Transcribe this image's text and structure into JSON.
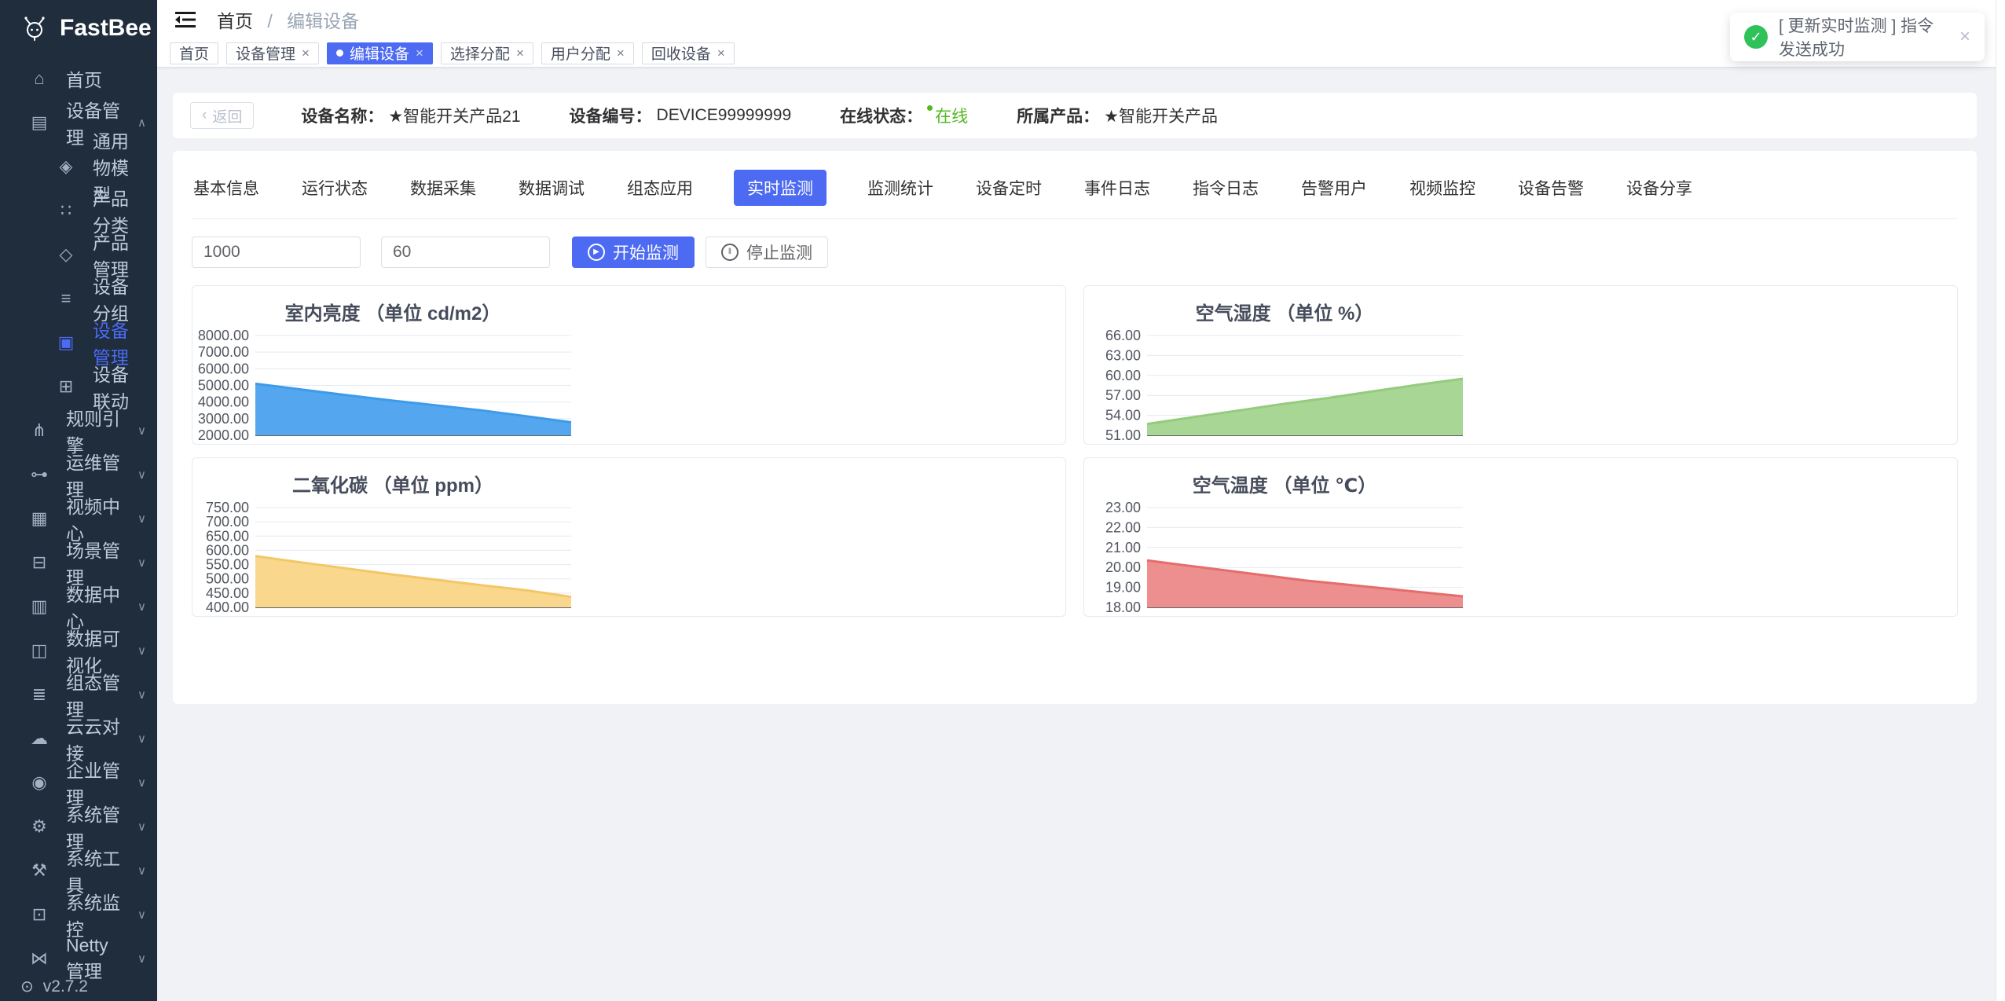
{
  "app": {
    "logo_text": "FastBee",
    "version": "v2.7.2"
  },
  "colors": {
    "accent": "#4c6af2",
    "sidebar_bg": "#1f2d3d",
    "content_bg": "#f0f2f5",
    "online_green": "#52b81f",
    "toast_green": "#2fc25b"
  },
  "icons": {
    "home-icon": "⌂",
    "device-management-icon": "▤",
    "thing-model-icon": "◈",
    "product-category-icon": "∷",
    "product-management-icon": "◇",
    "device-group-icon": "≡",
    "device-list-icon": "▣",
    "device-linkage-icon": "⊞",
    "rule-engine-icon": "⋔",
    "ops-management-icon": "⊶",
    "video-center-icon": "▦",
    "scene-management-icon": "⊟",
    "data-center-icon": "▥",
    "data-visualization-icon": "◫",
    "scada-management-icon": "≣",
    "cloud-integration-icon": "☁",
    "enterprise-management-icon": "◉",
    "system-management-icon": "⚙",
    "system-tools-icon": "⚒",
    "system-monitor-icon": "⊡",
    "netty-management-icon": "⋈",
    "version-icon": "⊙",
    "chevron-down-icon": "∨",
    "chevron-up-icon": "∧",
    "back-icon": "‹",
    "play-icon": "▶",
    "pause-icon": "‖",
    "check-icon": "✓",
    "close-icon": "×"
  },
  "sidebar_menu": [
    {
      "name": "home",
      "icon": "home-icon",
      "label": "首页"
    },
    {
      "name": "device-management",
      "icon": "device-management-icon",
      "label": "设备管理",
      "chevron": "up",
      "children": [
        {
          "name": "thing-model",
          "icon": "thing-model-icon",
          "label": "通用物模型"
        },
        {
          "name": "product-category",
          "icon": "product-category-icon",
          "label": "产品分类"
        },
        {
          "name": "product-management",
          "icon": "product-management-icon",
          "label": "产品管理"
        },
        {
          "name": "device-group",
          "icon": "device-group-icon",
          "label": "设备分组"
        },
        {
          "name": "device-list",
          "icon": "device-list-icon",
          "label": "设备管理",
          "active": true
        },
        {
          "name": "device-linkage",
          "icon": "device-linkage-icon",
          "label": "设备联动"
        }
      ]
    },
    {
      "name": "rule-engine",
      "icon": "rule-engine-icon",
      "label": "规则引擎",
      "chevron": "down"
    },
    {
      "name": "ops-management",
      "icon": "ops-management-icon",
      "label": "运维管理",
      "chevron": "down"
    },
    {
      "name": "video-center",
      "icon": "video-center-icon",
      "label": "视频中心",
      "chevron": "down"
    },
    {
      "name": "scene-management",
      "icon": "scene-management-icon",
      "label": "场景管理",
      "chevron": "down"
    },
    {
      "name": "data-center",
      "icon": "data-center-icon",
      "label": "数据中心",
      "chevron": "down"
    },
    {
      "name": "data-visualization",
      "icon": "data-visualization-icon",
      "label": "数据可视化",
      "chevron": "down"
    },
    {
      "name": "scada-management",
      "icon": "scada-management-icon",
      "label": "组态管理",
      "chevron": "down"
    },
    {
      "name": "cloud-integration",
      "icon": "cloud-integration-icon",
      "label": "云云对接",
      "chevron": "down"
    },
    {
      "name": "enterprise-management",
      "icon": "enterprise-management-icon",
      "label": "企业管理",
      "chevron": "down"
    },
    {
      "name": "system-management",
      "icon": "system-management-icon",
      "label": "系统管理",
      "chevron": "down"
    },
    {
      "name": "system-tools",
      "icon": "system-tools-icon",
      "label": "系统工具",
      "chevron": "down"
    },
    {
      "name": "system-monitor",
      "icon": "system-monitor-icon",
      "label": "系统监控",
      "chevron": "down"
    },
    {
      "name": "netty-management",
      "icon": "netty-management-icon",
      "label": "Netty管理",
      "chevron": "down"
    }
  ],
  "breadcrumb": {
    "items": [
      "首页",
      "编辑设备"
    ]
  },
  "tags_view": [
    {
      "label": "首页",
      "closable": false,
      "active": false
    },
    {
      "label": "设备管理",
      "closable": true,
      "active": false
    },
    {
      "label": "编辑设备",
      "closable": true,
      "active": true
    },
    {
      "label": "选择分配",
      "closable": true,
      "active": false
    },
    {
      "label": "用户分配",
      "closable": true,
      "active": false
    },
    {
      "label": "回收设备",
      "closable": true,
      "active": false
    }
  ],
  "toast": {
    "message": "[ 更新实时监测 ] 指令发送成功"
  },
  "device_info": {
    "back_label": "返回",
    "fields": [
      {
        "name": "device-name",
        "label": "设备名称：",
        "value": "★智能开关产品21"
      },
      {
        "name": "device-number",
        "label": "设备编号：",
        "value": "DEVICE99999999"
      },
      {
        "name": "online-status",
        "label": "在线状态：",
        "value": "在线",
        "status": "online"
      },
      {
        "name": "product",
        "label": "所属产品：",
        "value": "★智能开关产品"
      }
    ]
  },
  "tabs": {
    "items": [
      "基本信息",
      "运行状态",
      "数据采集",
      "数据调试",
      "组态应用",
      "实时监测",
      "监测统计",
      "设备定时",
      "事件日志",
      "指令日志",
      "告警用户",
      "视频监控",
      "设备告警",
      "设备分享"
    ],
    "active": "实时监测"
  },
  "monitor_controls": {
    "interval_value": "1000",
    "count_value": "60",
    "start_label": "开始监测",
    "stop_label": "停止监测"
  },
  "chart_data": [
    {
      "type": "area",
      "name": "indoor-brightness",
      "title": "室内亮度 （单位 cd/m2）",
      "ylabel": "cd/m2",
      "ylim": [
        2000,
        8000
      ],
      "grid": true,
      "legend_position": "none",
      "tick_labels": [
        "8000.00",
        "7000.00",
        "6000.00",
        "5000.00",
        "4000.00",
        "3000.00",
        "2000.00"
      ],
      "values": [
        5100,
        4760,
        4420,
        4100,
        3800,
        3500,
        3150,
        2780
      ],
      "fill": "#54a7ee",
      "stroke": "#3d9bea"
    },
    {
      "type": "area",
      "name": "air-humidity",
      "title": "空气湿度 （单位 %）",
      "ylabel": "%",
      "ylim": [
        51,
        66
      ],
      "grid": true,
      "legend_position": "none",
      "tick_labels": [
        "66.00",
        "63.00",
        "60.00",
        "57.00",
        "54.00",
        "51.00"
      ],
      "values": [
        52.7,
        53.7,
        54.7,
        55.7,
        56.6,
        57.6,
        58.6,
        59.5
      ],
      "fill": "#a8d694",
      "stroke": "#95cb7d"
    },
    {
      "type": "area",
      "name": "carbon-dioxide",
      "title": "二氧化碳 （单位 ppm）",
      "ylabel": "ppm",
      "ylim": [
        400,
        750
      ],
      "grid": true,
      "legend_position": "none",
      "tick_labels": [
        "750.00",
        "700.00",
        "650.00",
        "600.00",
        "550.00",
        "500.00",
        "450.00",
        "400.00"
      ],
      "values": [
        580,
        558,
        537,
        516,
        497,
        478,
        460,
        437
      ],
      "fill": "#f9d78c",
      "stroke": "#f2c769"
    },
    {
      "type": "area",
      "name": "air-temperature",
      "title": "空气温度 （单位 ℃）",
      "ylabel": "℃",
      "ylim": [
        18,
        23
      ],
      "grid": true,
      "legend_position": "none",
      "tick_labels": [
        "23.00",
        "22.00",
        "21.00",
        "20.00",
        "19.00",
        "18.00"
      ],
      "values": [
        20.35,
        20.1,
        19.85,
        19.6,
        19.35,
        19.15,
        18.95,
        18.75,
        18.55
      ],
      "fill": "#ed8f8f",
      "stroke": "#e46d6d"
    }
  ]
}
